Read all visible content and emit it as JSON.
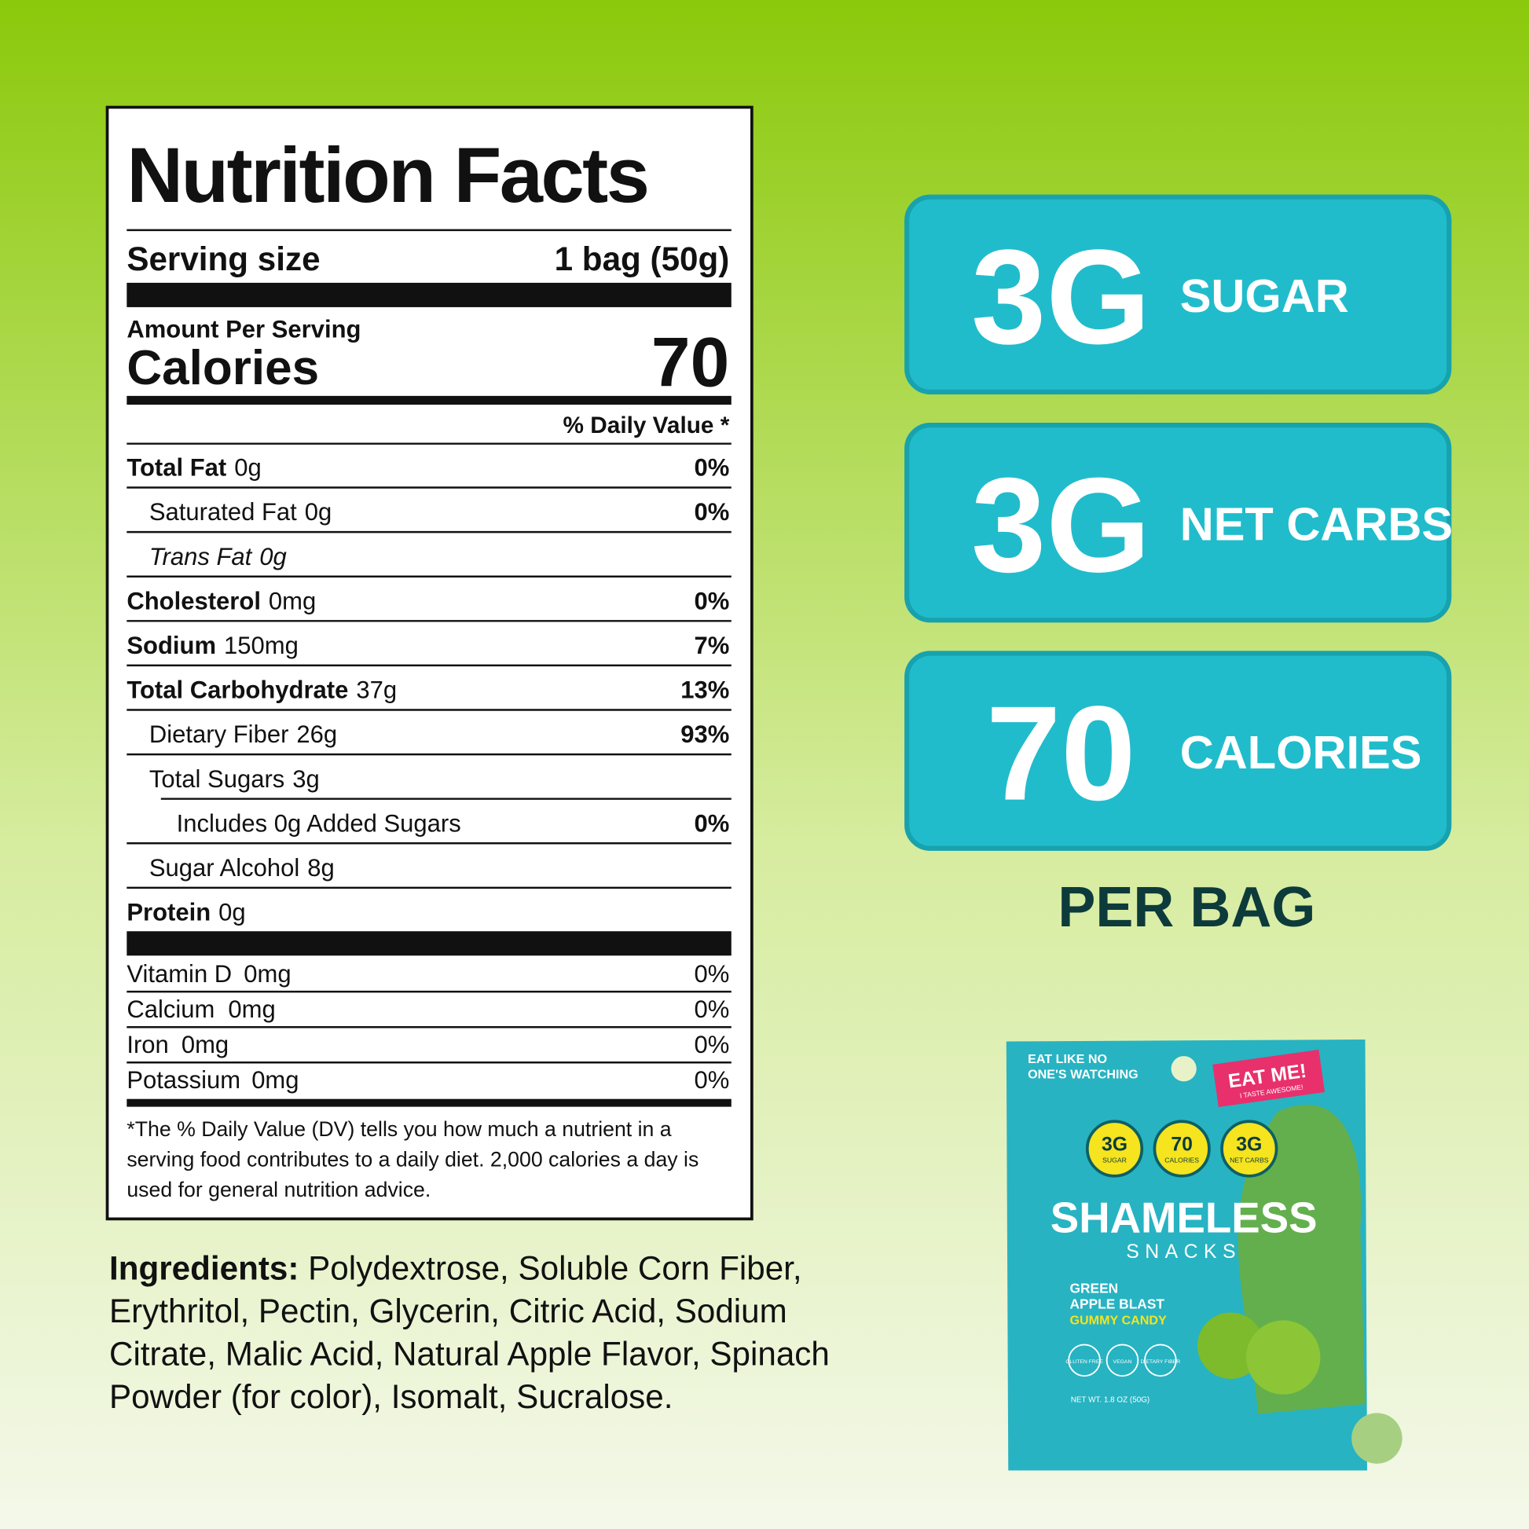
{
  "nutrition_facts": {
    "title": "Nutrition Facts",
    "serving_size_label": "Serving size",
    "serving_size": "1 bag (50g)",
    "amount_per_serving": "Amount Per Serving",
    "calories_label": "Calories",
    "calories": "70",
    "daily_value_header": "% Daily Value *",
    "rows": [
      {
        "name": "Total Fat",
        "amount": "0g",
        "dv": "0%",
        "level": 0
      },
      {
        "name": "Saturated Fat",
        "amount": "0g",
        "dv": "0%",
        "level": 1
      },
      {
        "name": "Trans Fat",
        "amount": "0g",
        "level": 1,
        "italic": true
      },
      {
        "name": "Cholesterol",
        "amount": "0mg",
        "dv": "0%",
        "level": 0
      },
      {
        "name": "Sodium",
        "amount": "150mg",
        "dv": "7%",
        "level": 0
      },
      {
        "name": "Total Carbohydrate",
        "amount": "37g",
        "dv": "13%",
        "level": 0
      },
      {
        "name": "Dietary Fiber",
        "amount": "26g",
        "dv": "93%",
        "level": 1
      },
      {
        "name": "Total Sugars",
        "amount": "3g",
        "level": 1
      },
      {
        "name": "Includes  0g  Added Sugars",
        "dv": "0%",
        "level": 2
      },
      {
        "name": "Sugar Alcohol",
        "amount": "8g",
        "level": 1
      },
      {
        "name": "Protein",
        "amount": "0g",
        "level": 0
      }
    ],
    "vitamins": [
      {
        "name": "Vitamin D",
        "amount": "0mg",
        "dv": "0%"
      },
      {
        "name": "Calcium",
        "amount": "0mg",
        "dv": "0%"
      },
      {
        "name": "Iron",
        "amount": "0mg",
        "dv": "0%"
      },
      {
        "name": "Potassium",
        "amount": "0mg",
        "dv": "0%"
      }
    ],
    "footnote": [
      "*The % Daily Value (DV) tells you how much a nutrient in a",
      "serving food contributes to a daily diet. 2,000 calories a day is",
      "used for general nutrition advice."
    ]
  },
  "ingredients": {
    "label": "Ingredients:",
    "lines": [
      " Polydextrose, Soluble Corn Fiber,",
      "Erythritol, Pectin, Glycerin, Citric Acid, Sodium",
      "Citrate, Malic Acid, Natural Apple Flavor, Spinach",
      "Powder (for color), Isomalt, Sucralose."
    ]
  },
  "highlights": [
    {
      "value": "3G",
      "label": "SUGAR"
    },
    {
      "value": "3G",
      "label": "NET CARBS"
    },
    {
      "value": "70",
      "label": "CALORIES"
    }
  ],
  "per_bag": "PER BAG",
  "package": {
    "tagline": [
      "EAT LIKE NO",
      "ONE'S WATCHING"
    ],
    "sticker": "EAT ME!",
    "sticker_sub": "I TASTE AWESOME!",
    "badges": [
      {
        "value": "3G",
        "label": "SUGAR"
      },
      {
        "value": "70",
        "label": "CALORIES"
      },
      {
        "value": "3G",
        "label": "NET CARBS"
      }
    ],
    "brand": "SHAMELESS",
    "brand_sub": "SNACKS",
    "flavor": [
      "GREEN",
      "APPLE BLAST"
    ],
    "product": "GUMMY CANDY",
    "icons": [
      "GLUTEN FREE",
      "VEGAN",
      "DIETARY FIBER"
    ],
    "net_weight": "NET WT. 1.8 OZ (50G)"
  }
}
